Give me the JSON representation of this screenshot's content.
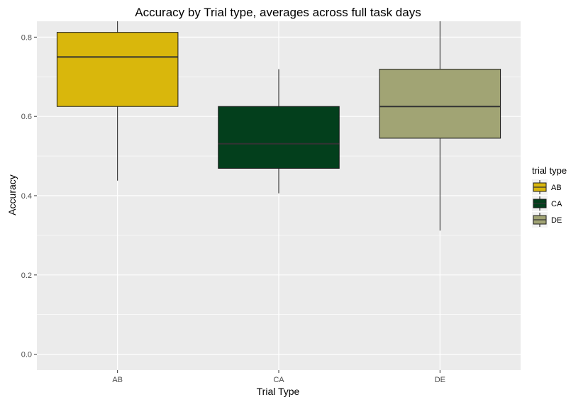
{
  "chart_data": {
    "type": "box",
    "title": "Accuracy by Trial type, averages across full task days",
    "xlabel": "Trial Type",
    "ylabel": "Accuracy",
    "ylim": [
      -0.04,
      0.84
    ],
    "yticks": [
      0.0,
      0.2,
      0.4,
      0.6,
      0.8
    ],
    "ytick_labels": [
      "0.0",
      "0.2",
      "0.4",
      "0.6",
      "0.8"
    ],
    "categories": [
      "AB",
      "CA",
      "DE"
    ],
    "boxes": [
      {
        "category": "AB",
        "min": 0.438,
        "q1": 0.625,
        "median": 0.75,
        "q3": 0.812,
        "max": 0.84,
        "color": "#D9B70C"
      },
      {
        "category": "CA",
        "min": 0.406,
        "q1": 0.469,
        "median": 0.531,
        "q3": 0.625,
        "max": 0.719,
        "color": "#033F1C"
      },
      {
        "category": "DE",
        "min": 0.312,
        "q1": 0.545,
        "median": 0.625,
        "q3": 0.719,
        "max": 0.84,
        "color": "#A1A474"
      }
    ],
    "legend": {
      "title": "trial type",
      "position": "right",
      "entries": [
        "AB",
        "CA",
        "DE"
      ]
    },
    "grid": true,
    "panel_background": "#EBEBEB",
    "grid_color": "#FFFFFF"
  }
}
